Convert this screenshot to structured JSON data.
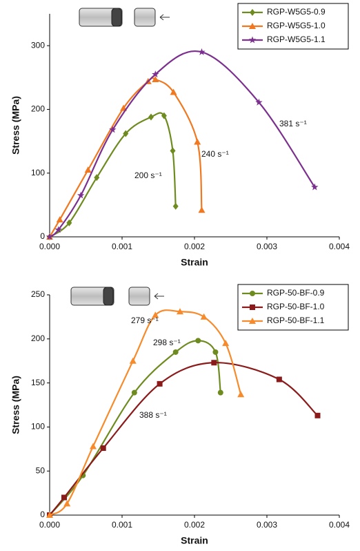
{
  "chart_data": [
    {
      "type": "line",
      "xlabel": "Strain",
      "ylabel": "Stress (MPa)",
      "xlim": [
        0,
        0.004
      ],
      "xticks": [
        {
          "value": 0,
          "label": "0.000"
        },
        0.001,
        0.002,
        0.003,
        0.004
      ],
      "ylim": [
        0,
        350
      ],
      "yticks": [
        0,
        100,
        200,
        300
      ],
      "legend": "upper right",
      "series": [
        {
          "name": "RGP-W5G5-0.9",
          "color": "#6e8b1f",
          "marker": "diamond",
          "x": [
            0,
            0.00027,
            0.00065,
            0.00105,
            0.0014,
            0.00158,
            0.0017,
            0.00174
          ],
          "values": [
            0,
            22,
            93,
            162,
            188,
            190,
            135,
            48
          ]
        },
        {
          "name": "RGP-W5G5-1.0",
          "color": "#f07820",
          "marker": "triangle",
          "x": [
            0,
            0.00014,
            0.00053,
            0.00102,
            0.00136,
            0.00146,
            0.00171,
            0.00204,
            0.0021
          ],
          "values": [
            0,
            27,
            105,
            202,
            244,
            247,
            227,
            149,
            42
          ]
        },
        {
          "name": "RGP-W5G5-1.1",
          "color": "#7b2f8e",
          "marker": "star",
          "x": [
            0,
            0.00012,
            0.00043,
            0.00087,
            0.00146,
            0.0021,
            0.00289,
            0.00366
          ],
          "values": [
            0,
            11,
            65,
            168,
            255,
            290,
            211,
            78
          ]
        }
      ],
      "annotations": [
        "200 s⁻¹",
        "240 s⁻¹",
        "381 s⁻¹"
      ]
    },
    {
      "type": "line",
      "xlabel": "Strain",
      "ylabel": "Stress (MPa)",
      "xlim": [
        0,
        0.004
      ],
      "xticks": [
        {
          "value": 0,
          "label": "0.000"
        },
        0.001,
        0.002,
        0.003,
        0.004
      ],
      "ylim": [
        0,
        250
      ],
      "yticks": [
        0,
        50,
        100,
        150,
        200,
        250
      ],
      "legend": "upper right",
      "series": [
        {
          "name": "RGP-50-BF-0.9",
          "color": "#6e8b1f",
          "marker": "circle",
          "x": [
            0,
            0.00046,
            0.00117,
            0.00174,
            0.00205,
            0.00229,
            0.00236
          ],
          "values": [
            0,
            45,
            139,
            185,
            198,
            185,
            139
          ]
        },
        {
          "name": "RGP-50-BF-1.0",
          "color": "#8b1a1a",
          "marker": "square",
          "x": [
            0,
            0.0002,
            0.00074,
            0.00152,
            0.00227,
            0.00317,
            0.0037
          ],
          "values": [
            0,
            20,
            76,
            149,
            173,
            154,
            113
          ]
        },
        {
          "name": "RGP-50-BF-1.1",
          "color": "#f78a2a",
          "marker": "triangle",
          "x": [
            0,
            0.00024,
            0.0006,
            0.00115,
            0.00146,
            0.0018,
            0.00213,
            0.00243,
            0.00264
          ],
          "values": [
            0,
            13,
            78,
            175,
            227,
            231,
            225,
            195,
            137
          ]
        }
      ],
      "annotations": [
        "279 s⁻¹",
        "298 s⁻¹",
        "388 s⁻¹"
      ]
    }
  ]
}
